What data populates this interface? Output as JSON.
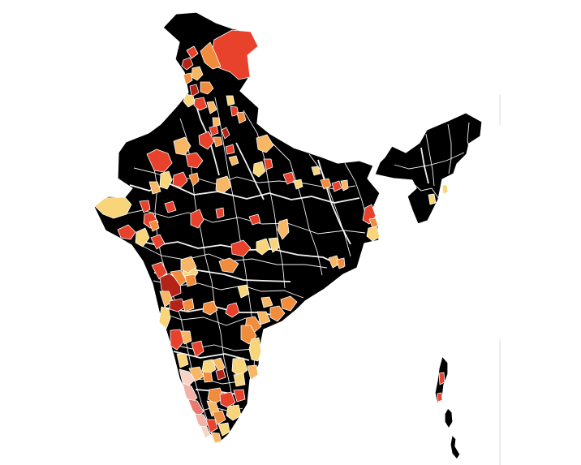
{
  "map": {
    "country": "India",
    "base_color": "#dcdcdc",
    "border_color": "#ffffff",
    "palette": {
      "dark_red": "#b42318",
      "red": "#e8412c",
      "orange": "#f28c3d",
      "light_orange": "#f7b765",
      "yellow": "#f8d57b",
      "pink": "#f3b2a6",
      "light_pink": "#f8d3c7",
      "salmon": "#e8796f"
    }
  }
}
